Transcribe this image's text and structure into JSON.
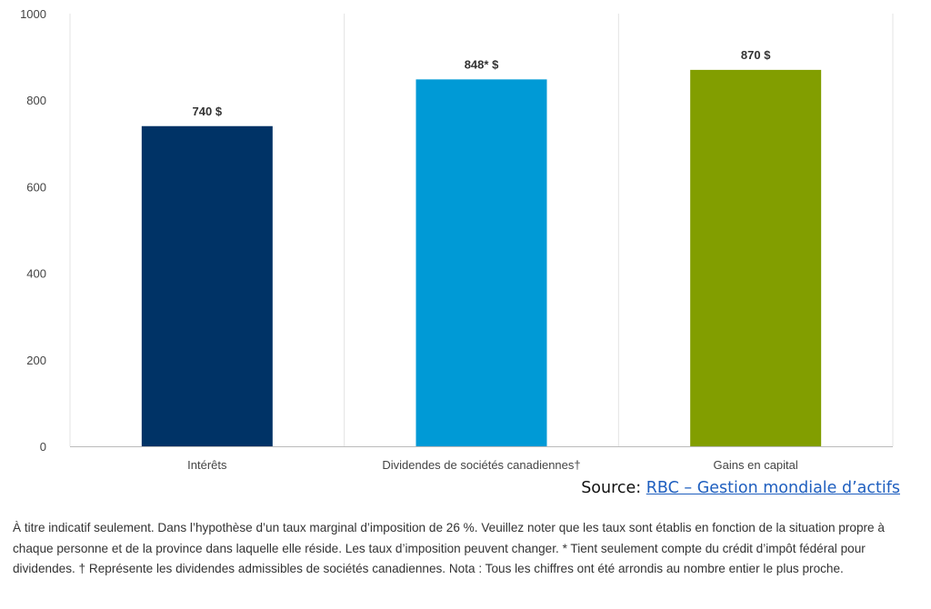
{
  "chart_data": {
    "type": "bar",
    "categories": [
      "Intérêts",
      "Dividendes de sociétés canadiennes†",
      "Gains en capital"
    ],
    "values": [
      740,
      848,
      870
    ],
    "data_labels": [
      "740 $",
      "848* $",
      "870 $"
    ],
    "colors": [
      "#003366",
      "#009ad6",
      "#829e00"
    ],
    "ylim": [
      0,
      1000
    ],
    "yticks": [
      0,
      200,
      400,
      600,
      800,
      1000
    ],
    "ytick_labels": [
      "0",
      "200",
      "400",
      "600",
      "800",
      "1000"
    ],
    "grid": "vertical separators between categories",
    "title": "",
    "xlabel": "",
    "ylabel": ""
  },
  "source": {
    "prefix": "Source: ",
    "link_text": "RBC – Gestion mondiale d’actifs"
  },
  "footnote": "À titre indicatif seulement. Dans l’hypothèse d’un taux marginal d’imposition de 26 %. Veuillez noter que les taux sont établis en fonction de la situation propre à chaque personne et de la province dans laquelle elle réside. Les taux d’imposition peuvent changer. * Tient seulement compte du crédit d’impôt fédéral pour dividendes. † Représente les dividendes admissibles de sociétés canadiennes. Nota : Tous les chiffres ont été arrondis au nombre entier le plus proche."
}
